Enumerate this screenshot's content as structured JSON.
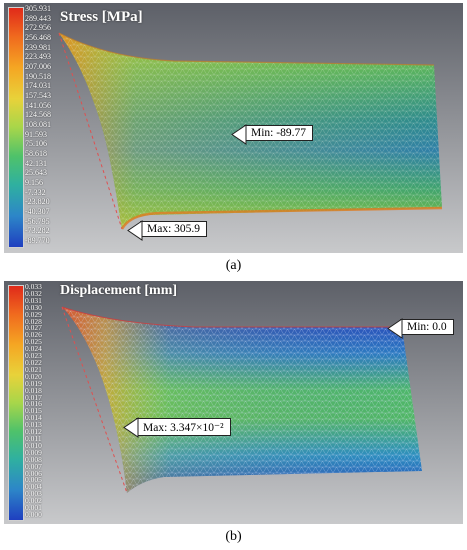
{
  "panels": [
    {
      "title": "Stress [MPa]",
      "ticks": [
        "305.931",
        "289.443",
        "272.956",
        "256.468",
        "239.981",
        "223.493",
        "207.006",
        "190.518",
        "174.031",
        "157.543",
        "141.056",
        "124.568",
        "108.081",
        "91.593",
        "75.106",
        "58.618",
        "42.131",
        "25.643",
        "9.156",
        "-7.332",
        "-23.820",
        "-40.307",
        "-56.795",
        "-73.282",
        "-89.770"
      ],
      "min_label": "Min: -89.77",
      "max_label": "Max: 305.9",
      "caption": "(a)"
    },
    {
      "title": "Displacement [mm]",
      "ticks": [
        "0.033",
        "0.032",
        "0.031",
        "0.030",
        "0.029",
        "0.028",
        "0.027",
        "0.026",
        "0.025",
        "0.024",
        "0.023",
        "0.022",
        "0.021",
        "0.020",
        "0.019",
        "0.018",
        "0.017",
        "0.016",
        "0.015",
        "0.014",
        "0.013",
        "0.012",
        "0.011",
        "0.010",
        "0.009",
        "0.008",
        "0.007",
        "0.006",
        "0.005",
        "0.004",
        "0.003",
        "0.002",
        "0.001",
        "0.000"
      ],
      "min_label": "Min: 0.0",
      "max_label": "Max: 3.347×10⁻²",
      "caption": "(b)"
    }
  ],
  "colors": {
    "background_top": "#5c5f66",
    "background_bottom": "#c9cacc",
    "scale": [
      "#e0251b",
      "#f06a1e",
      "#f5a623",
      "#e8d23a",
      "#a7d64a",
      "#4fc26a",
      "#2fb0a0",
      "#2d86c8",
      "#1f3fc0"
    ]
  }
}
